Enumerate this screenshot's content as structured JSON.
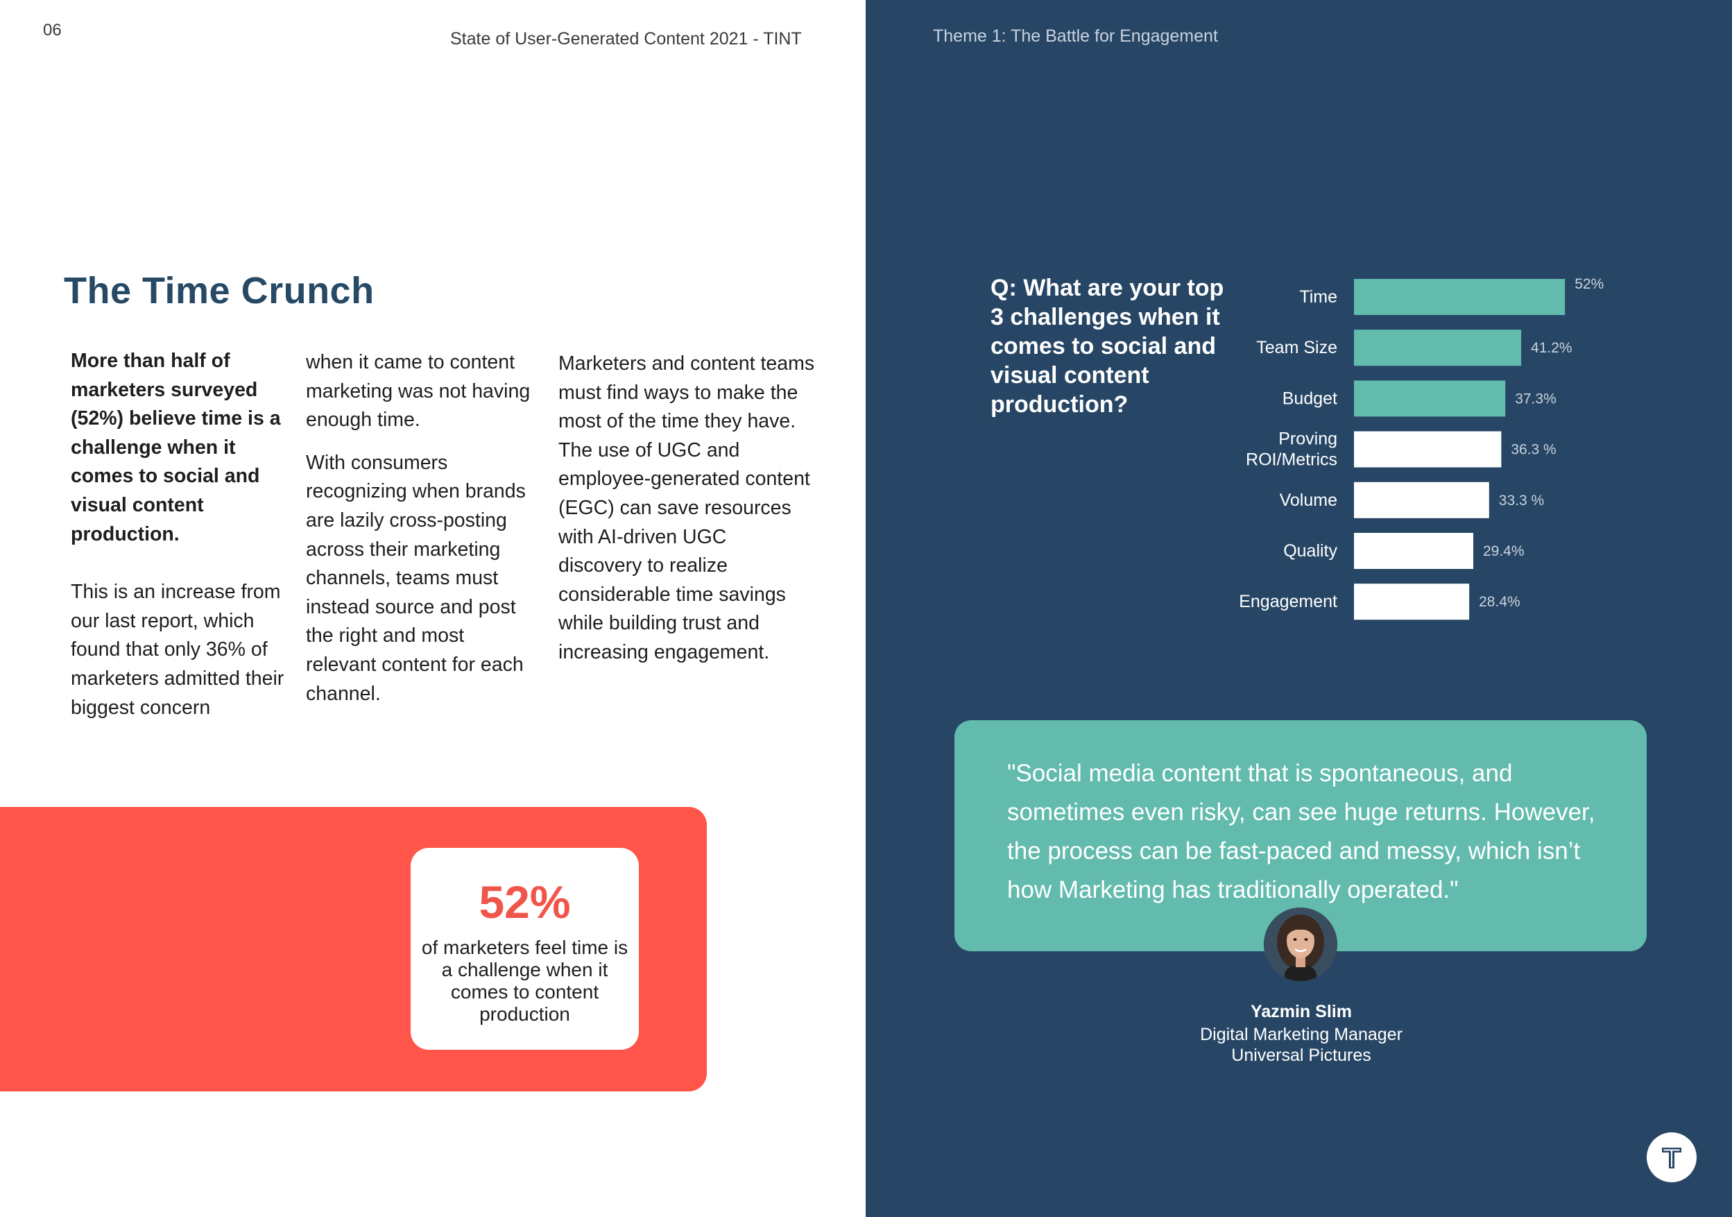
{
  "header": {
    "page_number": "06",
    "report_title": "State of User-Generated Content 2021 - TINT",
    "theme_title": "Theme 1: The Battle for Engagement"
  },
  "section": {
    "heading": "The Time Crunch"
  },
  "columns": {
    "col1_lead": "More than half of marketers surveyed (52%) believe time is a challenge when it comes to social and visual content production.",
    "col1_body": "This is an increase from our last report, which found that only 36% of marketers admitted their biggest concern",
    "col2_p1": "when it came to content marketing was not having enough time.",
    "col2_p2": "With consumers recognizing when brands are lazily cross-posting across their marketing channels, teams must instead source and post the right and most relevant content for each channel.",
    "col3_p1": "Marketers and content teams must find ways to make the most of the time they have. The use of UGC and employee-generated content (EGC) can save resources with AI-driven UGC discovery to realize considerable time savings while building trust and increasing engagement."
  },
  "stat": {
    "value": "52%",
    "caption": "of marketers feel time is a challenge when it comes to content production"
  },
  "question": "Q: What are your top 3 challenges when it comes to social and visual content production?",
  "chart_data": {
    "type": "bar",
    "orientation": "horizontal",
    "categories": [
      "Time",
      "Team Size",
      "Budget",
      "Proving ROI/Metrics",
      "Volume",
      "Quality",
      "Engagement"
    ],
    "category_lines": [
      [
        "Time"
      ],
      [
        "Team Size"
      ],
      [
        "Budget"
      ],
      [
        "Proving",
        "ROI/Metrics"
      ],
      [
        "Volume"
      ],
      [
        "Quality"
      ],
      [
        "Engagement"
      ]
    ],
    "values": [
      52,
      41.2,
      37.3,
      36.3,
      33.3,
      29.4,
      28.4
    ],
    "value_labels": [
      "52%",
      "41.2%",
      "37.3%",
      "36.3 %",
      "33.3 %",
      "29.4%",
      "28.4%"
    ],
    "highlight_count": 3,
    "colors": {
      "highlight": "#62bbad",
      "normal": "#ffffff"
    }
  },
  "quote": {
    "text": "\"Social media content that is spontaneous, and sometimes even risky, can see huge returns. However, the process can be fast-paced and messy, which isn’t how Marketing has traditionally operated.\"",
    "speaker_name": "Yazmin Slim",
    "speaker_role": "Digital Marketing Manager",
    "speaker_company": "Universal Pictures"
  },
  "colors": {
    "navy": "#274665",
    "coral": "#ff554a",
    "teal": "#62bbad",
    "heading": "#264966"
  },
  "icons": {
    "logo": "tint-logo-icon",
    "avatar": "person-photo"
  }
}
